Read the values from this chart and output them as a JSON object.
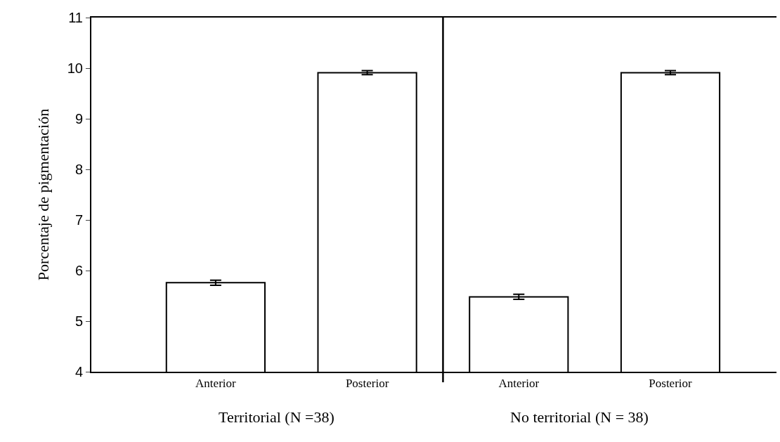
{
  "chart_data": {
    "type": "bar",
    "categories": [
      "Anterior",
      "Posterior",
      "Anterior",
      "Posterior"
    ],
    "values": [
      5.76,
      9.91,
      5.48,
      9.91
    ],
    "errors": [
      0.05,
      0.04,
      0.05,
      0.04
    ],
    "color": "#ffffff",
    "ylabel": "Porcentaje de pigmentación",
    "ylim": [
      4,
      11
    ],
    "yticks": [
      4,
      5,
      6,
      7,
      8,
      9,
      10,
      11
    ],
    "annotations": [
      "Territorial (N =38)",
      "No territorial (N = 38)"
    ]
  }
}
